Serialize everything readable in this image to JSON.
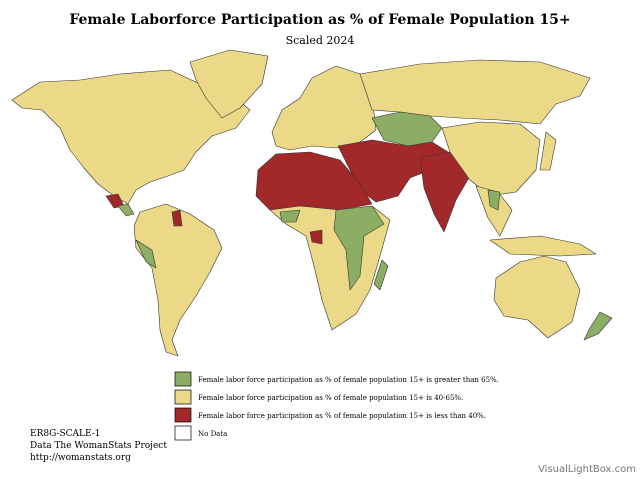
{
  "header": {
    "title": "Female Laborforce Participation as % of Female Population 15+",
    "subtitle": "Scaled 2024"
  },
  "legend": {
    "items": [
      {
        "label": "Female labor force participation as % of female population 15+ is greater than 65%.",
        "color": "#8cae64"
      },
      {
        "label": "Female labor force participation as % of female population 15+ is 40-65%.",
        "color": "#ebd987"
      },
      {
        "label": "Female labor force participation as % of female population 15+ is less than 40%.",
        "color": "#a3282a"
      },
      {
        "label": "No Data",
        "color": "#ffffff"
      }
    ]
  },
  "source": {
    "lines": [
      "ER8G-SCALE-1",
      "Data The WomanStats Project",
      "http://womanstats.org"
    ]
  },
  "watermark": "VisualLightBox.com"
}
